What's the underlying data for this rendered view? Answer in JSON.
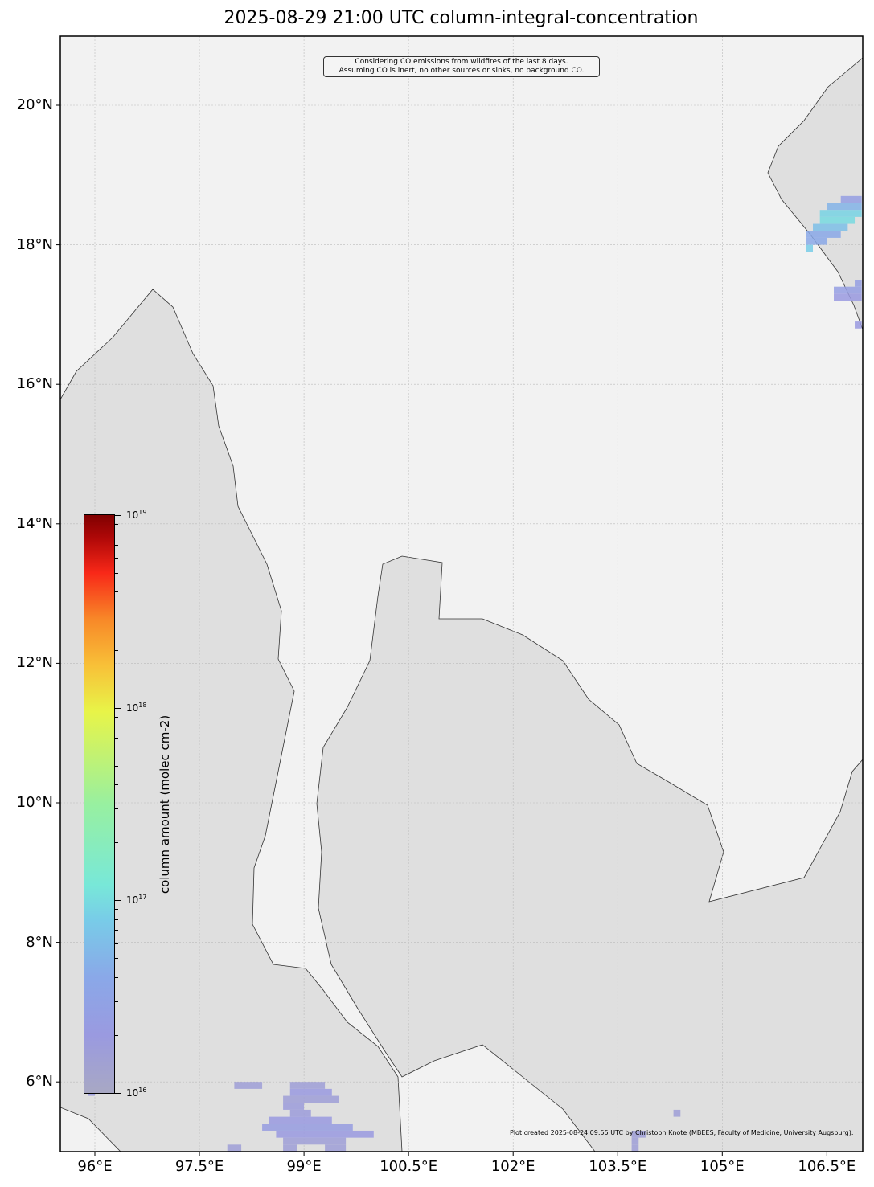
{
  "title": "2025-08-29 21:00 UTC column-integral-concentration",
  "annotation": {
    "line1": "Considering CO emissions from wildfires of the last 8 days.",
    "line2": "Assuming CO is inert, no other sources or sinks, no background CO."
  },
  "credit": "Plot created 2025-08-24 09:55 UTC by Christoph Knote (MBEES, Faculty of Medicine, University Augsburg).",
  "axes": {
    "lon_ticks": [
      "96°E",
      "97.5°E",
      "99°E",
      "100.5°E",
      "102°E",
      "103.5°E",
      "105°E",
      "106.5°E"
    ],
    "lon_values": [
      96,
      97.5,
      99,
      100.5,
      102,
      103.5,
      105,
      106.5
    ],
    "lat_ticks": [
      "20°N",
      "18°N",
      "16°N",
      "14°N",
      "12°N",
      "10°N",
      "8°N",
      "6°N"
    ],
    "lat_values": [
      20,
      18,
      16,
      14,
      12,
      10,
      8,
      6
    ],
    "lon_range": [
      95.5,
      107.0
    ],
    "lat_range": [
      5.0,
      21.0
    ]
  },
  "colorbar": {
    "label": "column amount (molec cm-2)",
    "scale": "log",
    "ticks": [
      {
        "base": "10",
        "exp": "19"
      },
      {
        "base": "10",
        "exp": "18"
      },
      {
        "base": "10",
        "exp": "17"
      },
      {
        "base": "10",
        "exp": "16"
      }
    ],
    "range_log10": [
      16,
      19
    ],
    "colormap": [
      "#a8a8c4",
      "#9a9ae0",
      "#78cce8",
      "#98f0a0",
      "#e8f448",
      "#f88828",
      "#f82818",
      "#800000"
    ]
  },
  "colors": {
    "land": "#f2f2f2",
    "ocean": "#dfdfdf",
    "coast": "#333333"
  },
  "plume_cells": [
    {
      "lat": 18.7,
      "lon": [
        106.7,
        107.0
      ],
      "log10": 16.4
    },
    {
      "lat": 18.6,
      "lon": [
        106.5,
        107.0
      ],
      "log10": 16.7
    },
    {
      "lat": 18.5,
      "lon": [
        106.4,
        107.0
      ],
      "log10": 16.95
    },
    {
      "lat": 18.4,
      "lon": [
        106.4,
        106.9
      ],
      "log10": 17.0
    },
    {
      "lat": 18.3,
      "lon": [
        106.3,
        106.8
      ],
      "log10": 16.8
    },
    {
      "lat": 18.2,
      "lon": [
        106.2,
        106.7
      ],
      "log10": 16.6
    },
    {
      "lat": 18.1,
      "lon": [
        106.2,
        106.5
      ],
      "log10": 16.6
    },
    {
      "lat": 18.0,
      "lon": [
        106.2,
        106.3
      ],
      "log10": 16.9
    },
    {
      "lat": 17.5,
      "lon": [
        106.9,
        107.0
      ],
      "log10": 16.4
    },
    {
      "lat": 17.4,
      "lon": [
        106.6,
        107.0
      ],
      "log10": 16.4
    },
    {
      "lat": 17.3,
      "lon": [
        106.6,
        107.0
      ],
      "log10": 16.3
    },
    {
      "lat": 16.9,
      "lon": [
        106.9,
        107.0
      ],
      "log10": 16.3
    },
    {
      "lat": 6.1,
      "lon": [
        95.9,
        96.0
      ],
      "log10": 16.3
    },
    {
      "lat": 6.0,
      "lon": [
        95.9,
        96.0
      ],
      "log10": 16.3
    },
    {
      "lat": 5.9,
      "lon": [
        95.9,
        96.0
      ],
      "log10": 16.3
    },
    {
      "lat": 6.0,
      "lon": [
        98.0,
        98.4
      ],
      "log10": 16.2
    },
    {
      "lat": 6.0,
      "lon": [
        98.8,
        99.3
      ],
      "log10": 16.2
    },
    {
      "lat": 5.9,
      "lon": [
        98.8,
        99.4
      ],
      "log10": 16.3
    },
    {
      "lat": 5.8,
      "lon": [
        98.7,
        99.5
      ],
      "log10": 16.2
    },
    {
      "lat": 5.7,
      "lon": [
        98.7,
        99.0
      ],
      "log10": 16.25
    },
    {
      "lat": 5.6,
      "lon": [
        98.8,
        99.1
      ],
      "log10": 16.25
    },
    {
      "lat": 5.5,
      "lon": [
        98.5,
        99.4
      ],
      "log10": 16.3
    },
    {
      "lat": 5.4,
      "lon": [
        98.4,
        99.7
      ],
      "log10": 16.35
    },
    {
      "lat": 5.3,
      "lon": [
        98.6,
        100.0
      ],
      "log10": 16.3
    },
    {
      "lat": 5.2,
      "lon": [
        98.7,
        99.6
      ],
      "log10": 16.2
    },
    {
      "lat": 5.1,
      "lon": [
        97.9,
        98.1
      ],
      "log10": 16.2
    },
    {
      "lat": 5.1,
      "lon": [
        98.7,
        98.9
      ],
      "log10": 16.2
    },
    {
      "lat": 5.1,
      "lon": [
        99.3,
        99.6
      ],
      "log10": 16.2
    },
    {
      "lat": 5.6,
      "lon": [
        104.3,
        104.4
      ],
      "log10": 16.2
    },
    {
      "lat": 5.3,
      "lon": [
        103.7,
        103.9
      ],
      "log10": 16.2
    },
    {
      "lat": 5.2,
      "lon": [
        103.7,
        103.8
      ],
      "log10": 16.2
    },
    {
      "lat": 5.1,
      "lon": [
        103.7,
        103.8
      ],
      "log10": 16.2
    }
  ]
}
